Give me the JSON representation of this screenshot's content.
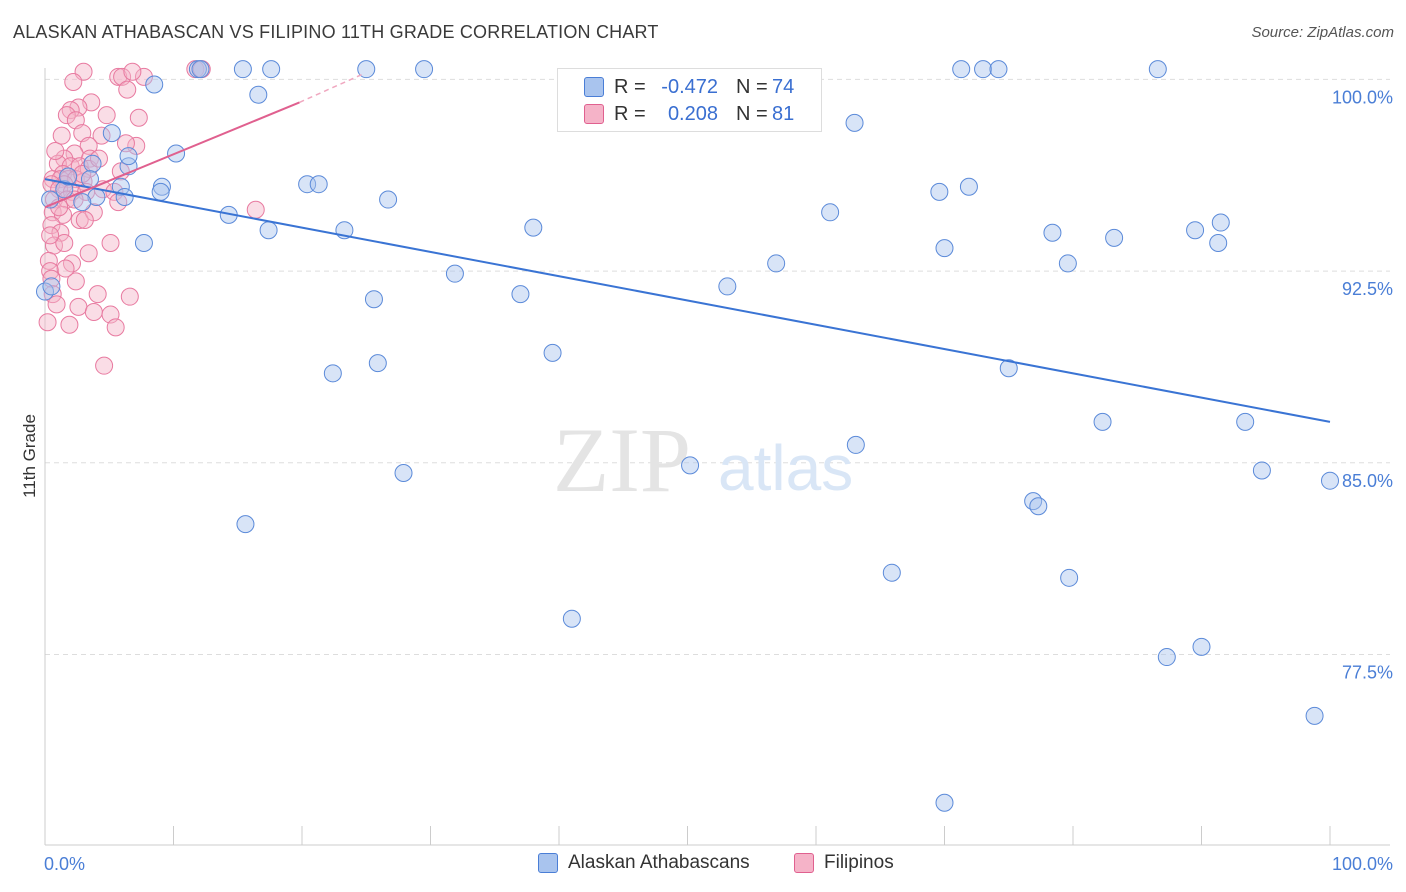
{
  "title": "ALASKAN ATHABASCAN VS FILIPINO 11TH GRADE CORRELATION CHART",
  "source": "Source: ZipAtlas.com",
  "watermark": {
    "zip": "ZIP",
    "atlas": "atlas"
  },
  "colors": {
    "blue": "#4a7ed6",
    "blue_fill": "#a9c4ee",
    "pink": "#e0608f",
    "pink_fill": "#f5b3c8",
    "grid": "#dddddd"
  },
  "legend": {
    "rows": [
      {
        "r_label": "R =",
        "r_value": "-0.472",
        "n_label": "N =",
        "n_value": "74"
      },
      {
        "r_label": "R =",
        "r_value": "0.208",
        "n_label": "N =",
        "n_value": "81"
      }
    ]
  },
  "bottom_legend": {
    "series1": "Alaskan Athabascans",
    "series2": "Filipinos"
  },
  "chart_data": {
    "type": "scatter",
    "title": "ALASKAN ATHABASCAN VS FILIPINO 11TH GRADE CORRELATION CHART",
    "xlabel": "",
    "ylabel": "11th Grade",
    "xlim": [
      0,
      100
    ],
    "ylim": [
      70.4,
      100.7
    ],
    "x_tick_labels": {
      "min": "0.0%",
      "max": "100.0%"
    },
    "y_ticks": [
      {
        "value": 100.0,
        "label": "100.0%"
      },
      {
        "value": 92.5,
        "label": "92.5%"
      },
      {
        "value": 85.0,
        "label": "85.0%"
      },
      {
        "value": 77.5,
        "label": "77.5%"
      }
    ],
    "series": [
      {
        "name": "Alaskan Athabascans",
        "color": "#4a7ed6",
        "trend": {
          "x": [
            0.0,
            100.0
          ],
          "y": [
            96.1,
            86.6
          ]
        },
        "points": [
          [
            11.9,
            100.4
          ],
          [
            12.1,
            100.4
          ],
          [
            15.4,
            100.4
          ],
          [
            17.6,
            100.4
          ],
          [
            25.0,
            100.4
          ],
          [
            29.5,
            100.4
          ],
          [
            71.3,
            100.4
          ],
          [
            73.0,
            100.4
          ],
          [
            74.2,
            100.4
          ],
          [
            86.6,
            100.4
          ],
          [
            8.5,
            99.8
          ],
          [
            16.6,
            99.4
          ],
          [
            5.2,
            97.9
          ],
          [
            6.5,
            96.6
          ],
          [
            6.5,
            97.0
          ],
          [
            10.2,
            97.1
          ],
          [
            3.7,
            96.7
          ],
          [
            3.5,
            96.1
          ],
          [
            1.5,
            95.7
          ],
          [
            5.9,
            95.8
          ],
          [
            9.1,
            95.8
          ],
          [
            9.0,
            95.6
          ],
          [
            4.0,
            95.4
          ],
          [
            6.2,
            95.4
          ],
          [
            0.4,
            95.3
          ],
          [
            20.4,
            95.9
          ],
          [
            21.3,
            95.9
          ],
          [
            26.7,
            95.3
          ],
          [
            14.3,
            94.7
          ],
          [
            17.4,
            94.1
          ],
          [
            23.3,
            94.1
          ],
          [
            38.0,
            94.2
          ],
          [
            7.7,
            93.6
          ],
          [
            31.9,
            92.4
          ],
          [
            37.0,
            91.6
          ],
          [
            25.6,
            91.4
          ],
          [
            0.0,
            91.7
          ],
          [
            0.5,
            91.9
          ],
          [
            22.4,
            88.5
          ],
          [
            25.9,
            88.9
          ],
          [
            39.5,
            89.3
          ],
          [
            53.1,
            91.9
          ],
          [
            56.9,
            92.8
          ],
          [
            61.1,
            94.8
          ],
          [
            63.0,
            98.3
          ],
          [
            69.6,
            95.6
          ],
          [
            71.9,
            95.8
          ],
          [
            70.0,
            93.4
          ],
          [
            78.4,
            94.0
          ],
          [
            79.6,
            92.8
          ],
          [
            83.2,
            93.8
          ],
          [
            89.5,
            94.1
          ],
          [
            91.3,
            93.6
          ],
          [
            91.5,
            94.4
          ],
          [
            75.0,
            88.7
          ],
          [
            82.3,
            86.6
          ],
          [
            93.4,
            86.6
          ],
          [
            100.0,
            84.3
          ],
          [
            63.1,
            85.7
          ],
          [
            50.2,
            84.9
          ],
          [
            27.9,
            84.6
          ],
          [
            94.7,
            84.7
          ],
          [
            76.9,
            83.5
          ],
          [
            77.3,
            83.3
          ],
          [
            15.6,
            82.6
          ],
          [
            65.9,
            80.7
          ],
          [
            79.7,
            80.5
          ],
          [
            41.0,
            78.9
          ],
          [
            87.3,
            77.4
          ],
          [
            90.0,
            77.8
          ],
          [
            98.8,
            75.1
          ],
          [
            70.0,
            71.7
          ],
          [
            1.8,
            96.2
          ],
          [
            2.9,
            95.2
          ]
        ]
      },
      {
        "name": "Filipinos",
        "color": "#e0608f",
        "trend": {
          "x": [
            0.0,
            19.8
          ],
          "y": [
            95.0,
            99.1
          ]
        },
        "trend_extension": {
          "x": [
            19.8,
            24.7
          ],
          "y": [
            99.1,
            100.2
          ]
        },
        "points": [
          [
            3.0,
            100.3
          ],
          [
            5.7,
            100.1
          ],
          [
            6.0,
            100.1
          ],
          [
            7.7,
            100.1
          ],
          [
            11.7,
            100.4
          ],
          [
            12.2,
            100.4
          ],
          [
            6.4,
            99.6
          ],
          [
            3.6,
            99.1
          ],
          [
            2.6,
            98.9
          ],
          [
            2.0,
            98.8
          ],
          [
            1.7,
            98.6
          ],
          [
            2.4,
            98.4
          ],
          [
            4.8,
            98.6
          ],
          [
            7.3,
            98.5
          ],
          [
            2.9,
            97.9
          ],
          [
            4.4,
            97.8
          ],
          [
            3.4,
            97.4
          ],
          [
            7.1,
            97.4
          ],
          [
            2.3,
            97.1
          ],
          [
            3.5,
            96.9
          ],
          [
            1.5,
            96.9
          ],
          [
            1.0,
            96.7
          ],
          [
            2.0,
            96.6
          ],
          [
            2.7,
            96.6
          ],
          [
            3.4,
            96.5
          ],
          [
            1.4,
            96.3
          ],
          [
            0.6,
            96.1
          ],
          [
            1.2,
            96.1
          ],
          [
            1.8,
            96.1
          ],
          [
            2.4,
            96.1
          ],
          [
            3.0,
            96.0
          ],
          [
            1.5,
            95.9
          ],
          [
            0.5,
            95.9
          ],
          [
            1.1,
            95.7
          ],
          [
            2.1,
            95.6
          ],
          [
            3.2,
            95.6
          ],
          [
            4.5,
            95.7
          ],
          [
            5.4,
            95.6
          ],
          [
            0.7,
            95.3
          ],
          [
            1.7,
            95.3
          ],
          [
            2.3,
            95.3
          ],
          [
            5.7,
            95.2
          ],
          [
            0.6,
            94.8
          ],
          [
            1.4,
            94.7
          ],
          [
            2.7,
            94.5
          ],
          [
            3.8,
            94.8
          ],
          [
            0.5,
            94.3
          ],
          [
            1.2,
            94.0
          ],
          [
            0.7,
            93.5
          ],
          [
            1.5,
            93.6
          ],
          [
            3.4,
            93.2
          ],
          [
            5.1,
            93.6
          ],
          [
            0.3,
            92.9
          ],
          [
            2.1,
            92.8
          ],
          [
            0.4,
            92.5
          ],
          [
            0.5,
            92.2
          ],
          [
            2.4,
            92.1
          ],
          [
            0.6,
            91.6
          ],
          [
            4.1,
            91.6
          ],
          [
            6.6,
            91.5
          ],
          [
            2.6,
            91.1
          ],
          [
            3.8,
            90.9
          ],
          [
            5.1,
            90.8
          ],
          [
            0.2,
            90.5
          ],
          [
            1.9,
            90.4
          ],
          [
            5.5,
            90.3
          ],
          [
            4.6,
            88.8
          ],
          [
            16.4,
            94.9
          ],
          [
            0.8,
            97.2
          ],
          [
            2.9,
            96.3
          ],
          [
            4.2,
            96.9
          ],
          [
            1.1,
            95.0
          ],
          [
            6.3,
            97.5
          ],
          [
            0.4,
            93.9
          ],
          [
            1.6,
            92.6
          ],
          [
            3.1,
            94.5
          ],
          [
            5.9,
            96.4
          ],
          [
            6.8,
            100.3
          ],
          [
            2.2,
            99.9
          ],
          [
            1.3,
            97.8
          ],
          [
            0.9,
            91.2
          ]
        ]
      }
    ]
  }
}
